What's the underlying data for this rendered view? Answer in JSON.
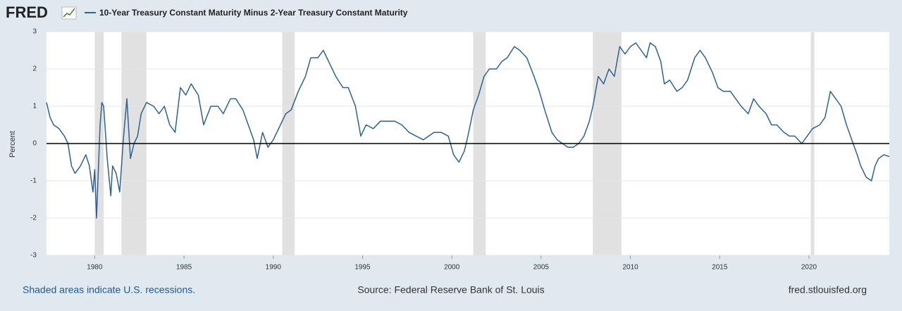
{
  "logo": "FRED",
  "chart_data": {
    "type": "line",
    "y_label": "Percent",
    "note": "Shaded areas indicate U.S. recessions.",
    "source": "Source: Federal Reserve Bank of St. Louis",
    "site": "fred.stlouisfed.org",
    "xlim": [
      1977.3,
      2024.5
    ],
    "xticks": [
      1980,
      1985,
      1990,
      1995,
      2000,
      2005,
      2010,
      2015,
      2020
    ],
    "ylim": [
      -3,
      3
    ],
    "yticks": [
      -3,
      -2,
      -1,
      0,
      1,
      2,
      3
    ],
    "grid": true,
    "zero_line": true,
    "recession_color": "#e1e1e1",
    "recessions": [
      [
        1980.0,
        1980.5
      ],
      [
        1981.5,
        1982.9
      ],
      [
        1990.5,
        1991.2
      ],
      [
        2001.2,
        2001.9
      ],
      [
        2007.9,
        2009.5
      ],
      [
        2020.1,
        2020.3
      ]
    ],
    "x": [
      1977.3,
      1977.5,
      1977.7,
      1978.0,
      1978.3,
      1978.5,
      1978.7,
      1978.9,
      1979.2,
      1979.5,
      1979.7,
      1979.9,
      1980.0,
      1980.1,
      1980.3,
      1980.4,
      1980.5,
      1980.7,
      1980.9,
      1981.0,
      1981.2,
      1981.4,
      1981.6,
      1981.8,
      1982.0,
      1982.2,
      1982.4,
      1982.6,
      1982.9,
      1983.3,
      1983.6,
      1983.9,
      1984.2,
      1984.5,
      1984.8,
      1985.1,
      1985.4,
      1985.8,
      1986.1,
      1986.5,
      1986.9,
      1987.2,
      1987.6,
      1987.9,
      1988.3,
      1988.6,
      1988.9,
      1989.1,
      1989.4,
      1989.7,
      1990.0,
      1990.4,
      1990.7,
      1991.0,
      1991.4,
      1991.8,
      1992.1,
      1992.5,
      1992.8,
      1993.1,
      1993.5,
      1993.9,
      1994.2,
      1994.6,
      1994.9,
      1995.2,
      1995.6,
      1996.0,
      1996.4,
      1996.8,
      1997.2,
      1997.6,
      1998.0,
      1998.4,
      1998.7,
      1999.0,
      1999.4,
      1999.8,
      2000.1,
      2000.4,
      2000.7,
      2000.9,
      2001.2,
      2001.5,
      2001.8,
      2002.1,
      2002.5,
      2002.8,
      2003.1,
      2003.5,
      2003.8,
      2004.2,
      2004.6,
      2004.9,
      2005.2,
      2005.6,
      2005.9,
      2006.2,
      2006.5,
      2006.8,
      2007.1,
      2007.4,
      2007.7,
      2007.9,
      2008.2,
      2008.5,
      2008.8,
      2009.1,
      2009.4,
      2009.7,
      2010.0,
      2010.3,
      2010.6,
      2010.9,
      2011.1,
      2011.4,
      2011.7,
      2011.9,
      2012.2,
      2012.6,
      2012.9,
      2013.2,
      2013.6,
      2013.9,
      2014.2,
      2014.6,
      2014.9,
      2015.2,
      2015.6,
      2015.9,
      2016.2,
      2016.6,
      2016.9,
      2017.2,
      2017.6,
      2017.9,
      2018.2,
      2018.6,
      2018.9,
      2019.2,
      2019.6,
      2019.9,
      2020.2,
      2020.6,
      2020.9,
      2021.2,
      2021.5,
      2021.8,
      2022.1,
      2022.4,
      2022.7,
      2022.9,
      2023.2,
      2023.5,
      2023.7,
      2023.9,
      2024.2,
      2024.5
    ],
    "series": [
      {
        "name": "10-Year Treasury Constant Maturity Minus 2-Year Treasury Constant Maturity",
        "color": "#30618f",
        "values": [
          1.1,
          0.7,
          0.5,
          0.4,
          0.2,
          0.0,
          -0.6,
          -0.8,
          -0.6,
          -0.3,
          -0.6,
          -1.3,
          -0.7,
          -2.0,
          0.5,
          1.1,
          1.0,
          -0.4,
          -1.4,
          -0.6,
          -0.8,
          -1.3,
          0.1,
          1.2,
          -0.4,
          0.0,
          0.2,
          0.8,
          1.1,
          1.0,
          0.8,
          1.0,
          0.5,
          0.3,
          1.5,
          1.3,
          1.6,
          1.3,
          0.5,
          1.0,
          1.0,
          0.8,
          1.2,
          1.2,
          0.9,
          0.5,
          0.1,
          -0.4,
          0.3,
          -0.1,
          0.1,
          0.5,
          0.8,
          0.9,
          1.4,
          1.8,
          2.3,
          2.3,
          2.5,
          2.2,
          1.8,
          1.5,
          1.5,
          1.0,
          0.2,
          0.5,
          0.4,
          0.6,
          0.6,
          0.6,
          0.5,
          0.3,
          0.2,
          0.1,
          0.2,
          0.3,
          0.3,
          0.2,
          -0.3,
          -0.5,
          -0.2,
          0.2,
          0.9,
          1.3,
          1.8,
          2.0,
          2.0,
          2.2,
          2.3,
          2.6,
          2.5,
          2.3,
          1.8,
          1.4,
          0.9,
          0.3,
          0.1,
          0.0,
          -0.1,
          -0.1,
          0.0,
          0.2,
          0.6,
          1.0,
          1.8,
          1.6,
          2.0,
          1.8,
          2.6,
          2.4,
          2.6,
          2.7,
          2.5,
          2.3,
          2.7,
          2.6,
          2.2,
          1.6,
          1.7,
          1.4,
          1.5,
          1.7,
          2.3,
          2.5,
          2.3,
          1.9,
          1.5,
          1.4,
          1.4,
          1.2,
          1.0,
          0.8,
          1.2,
          1.0,
          0.8,
          0.5,
          0.5,
          0.3,
          0.2,
          0.2,
          0.0,
          0.2,
          0.4,
          0.5,
          0.7,
          1.4,
          1.2,
          1.0,
          0.5,
          0.1,
          -0.3,
          -0.6,
          -0.9,
          -1.0,
          -0.6,
          -0.4,
          -0.3,
          -0.35
        ]
      }
    ]
  }
}
